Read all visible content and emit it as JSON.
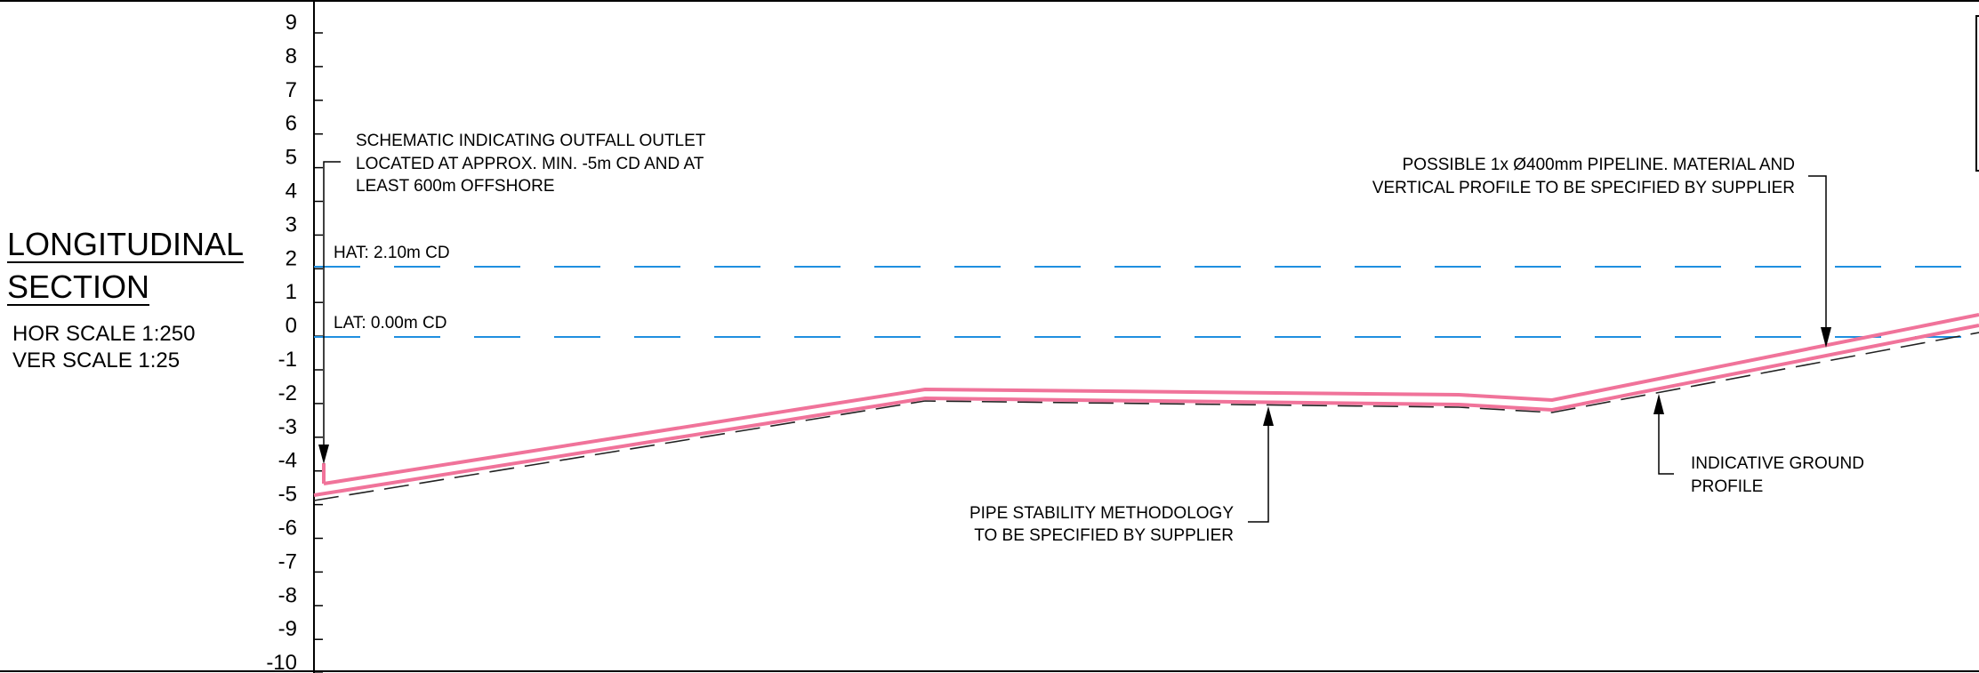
{
  "title": {
    "line1": "LONGITUDINAL",
    "line2": "SECTION",
    "hor_scale": "HOR SCALE 1:250",
    "ver_scale": "VER SCALE 1:25"
  },
  "axis_labels": [
    "9",
    "8",
    "7",
    "6",
    "5",
    "4",
    "3",
    "2",
    "1",
    "0",
    "-1",
    "-2",
    "-3",
    "-4",
    "-5",
    "-6",
    "-7",
    "-8",
    "-9",
    "-10"
  ],
  "levels": {
    "hat": "HAT: 2.10m CD",
    "lat": "LAT: 0.00m CD"
  },
  "annotations": {
    "outfall": [
      "SCHEMATIC INDICATING OUTFALL OUTLET",
      "LOCATED AT APPROX. MIN. -5m CD AND AT",
      "LEAST 600m OFFSHORE"
    ],
    "pipeline": [
      "POSSIBLE 1x Ø400mm PIPELINE. MATERIAL AND",
      "VERTICAL PROFILE TO BE SPECIFIED BY SUPPLIER"
    ],
    "stability": [
      "PIPE STABILITY METHODOLOGY",
      "TO BE SPECIFIED BY SUPPLIER"
    ],
    "ground": [
      "INDICATIVE GROUND",
      "PROFILE"
    ]
  },
  "colors": {
    "pipe": "#f0739a",
    "water_level": "#1f8fe0",
    "ground": "#222222",
    "lines": "#000000"
  }
}
